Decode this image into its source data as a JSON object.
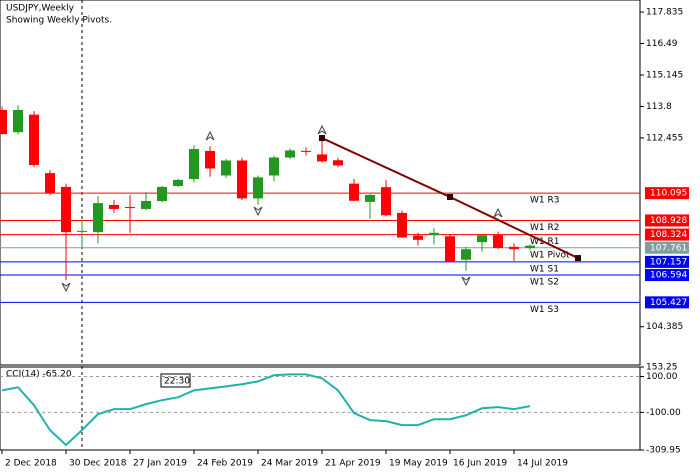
{
  "chart_data": [
    {
      "type": "candlestick",
      "title": "USDJPY,Weekly",
      "subtitle": "Showing Weekly Pivots.",
      "categories": [
        "2 Dec 2018",
        null,
        null,
        null,
        "30 Dec 2018",
        null,
        null,
        null,
        "27 Jan 2019",
        null,
        null,
        null,
        "24 Feb 2019",
        null,
        null,
        null,
        "24 Mar 2019",
        null,
        null,
        null,
        "21 Apr 2019",
        null,
        null,
        null,
        "19 May 2019",
        null,
        null,
        null,
        "16 Jun 2019",
        null,
        null,
        null,
        "14 Jul 2019",
        null
      ],
      "open": [
        113.65,
        112.7,
        113.45,
        110.95,
        110.36,
        108.45,
        108.43,
        109.59,
        109.5,
        109.42,
        109.76,
        110.4,
        110.7,
        111.9,
        110.85,
        111.49,
        109.87,
        110.85,
        111.62,
        111.9,
        111.75,
        111.5,
        110.5,
        109.72,
        110.35,
        109.25,
        108.28,
        108.3,
        108.25,
        107.25,
        108.0,
        108.3,
        107.8,
        107.75
      ],
      "high": [
        113.8,
        113.85,
        113.6,
        111.08,
        110.5,
        108.95,
        109.97,
        109.8,
        110.01,
        110.14,
        110.4,
        110.7,
        112.15,
        112.1,
        111.55,
        111.6,
        110.85,
        111.7,
        112.0,
        112.05,
        112.4,
        111.6,
        110.7,
        110.05,
        110.65,
        109.35,
        108.4,
        108.6,
        108.35,
        107.8,
        108.3,
        108.45,
        107.95,
        107.9
      ],
      "low": [
        112.6,
        112.6,
        111.2,
        110.0,
        106.38,
        107.75,
        107.95,
        109.25,
        108.4,
        109.37,
        109.7,
        110.35,
        110.55,
        110.8,
        110.75,
        109.8,
        109.6,
        110.6,
        111.55,
        111.7,
        111.4,
        111.2,
        109.75,
        109.0,
        109.1,
        108.2,
        107.85,
        107.9,
        107.15,
        106.78,
        107.6,
        107.7,
        107.2,
        107.65
      ],
      "close": [
        112.62,
        113.65,
        111.3,
        110.1,
        108.43,
        108.48,
        109.67,
        109.42,
        109.48,
        109.76,
        110.36,
        110.66,
        111.98,
        111.15,
        111.49,
        109.87,
        110.77,
        111.62,
        111.92,
        111.88,
        111.45,
        111.28,
        109.77,
        110.02,
        109.15,
        108.2,
        108.1,
        108.4,
        107.15,
        107.7,
        108.3,
        107.75,
        107.7,
        107.85
      ],
      "up_color": "#1f9a1f",
      "down_color": "#ff0000",
      "ylim": [
        102.75,
        118.35
      ],
      "yticks": [
        117.835,
        116.49,
        115.145,
        113.8,
        112.455,
        104.385
      ],
      "pivots": [
        {
          "name": "W1 R3",
          "value": 110.095,
          "color": "#ff0000"
        },
        {
          "name": "W1 R2",
          "value": 108.928,
          "color": "#ff0000"
        },
        {
          "name": "W1 R1",
          "value": 108.324,
          "color": "#ff0000"
        },
        {
          "name": "W1 Pivot",
          "value": 107.761,
          "color": "#7f9f9f"
        },
        {
          "name": "W1 S1",
          "value": 107.157,
          "color": "#0000ff"
        },
        {
          "name": "W1 S2",
          "value": 106.594,
          "color": "#0000ff"
        },
        {
          "name": "W1 S3",
          "value": 105.427,
          "color": "#0000ff"
        }
      ],
      "trendline": {
        "x": [
          20,
          28,
          36
        ],
        "y": [
          112.45,
          109.93,
          107.32
        ],
        "color": "#800000"
      },
      "time_label": "22:30"
    },
    {
      "type": "line",
      "title": "CCI(14) -65.20",
      "color": "#20b2aa",
      "values": [
        23,
        40,
        -60,
        -199,
        -282,
        -199,
        -110,
        -82,
        -82,
        -54,
        -32,
        -16,
        23,
        34,
        45,
        57,
        73,
        107,
        112,
        112,
        90,
        23,
        -104,
        -143,
        -149,
        -171,
        -171,
        -138,
        -138,
        -116,
        -77,
        -71,
        -82,
        -65.2
      ],
      "ylim": [
        -309.95,
        153.25
      ],
      "yticks": [
        153.25,
        {
          "value": 100,
          "label": "100.00"
        },
        {
          "value": -100,
          "label": "-100.00"
        },
        -309.95
      ]
    }
  ]
}
